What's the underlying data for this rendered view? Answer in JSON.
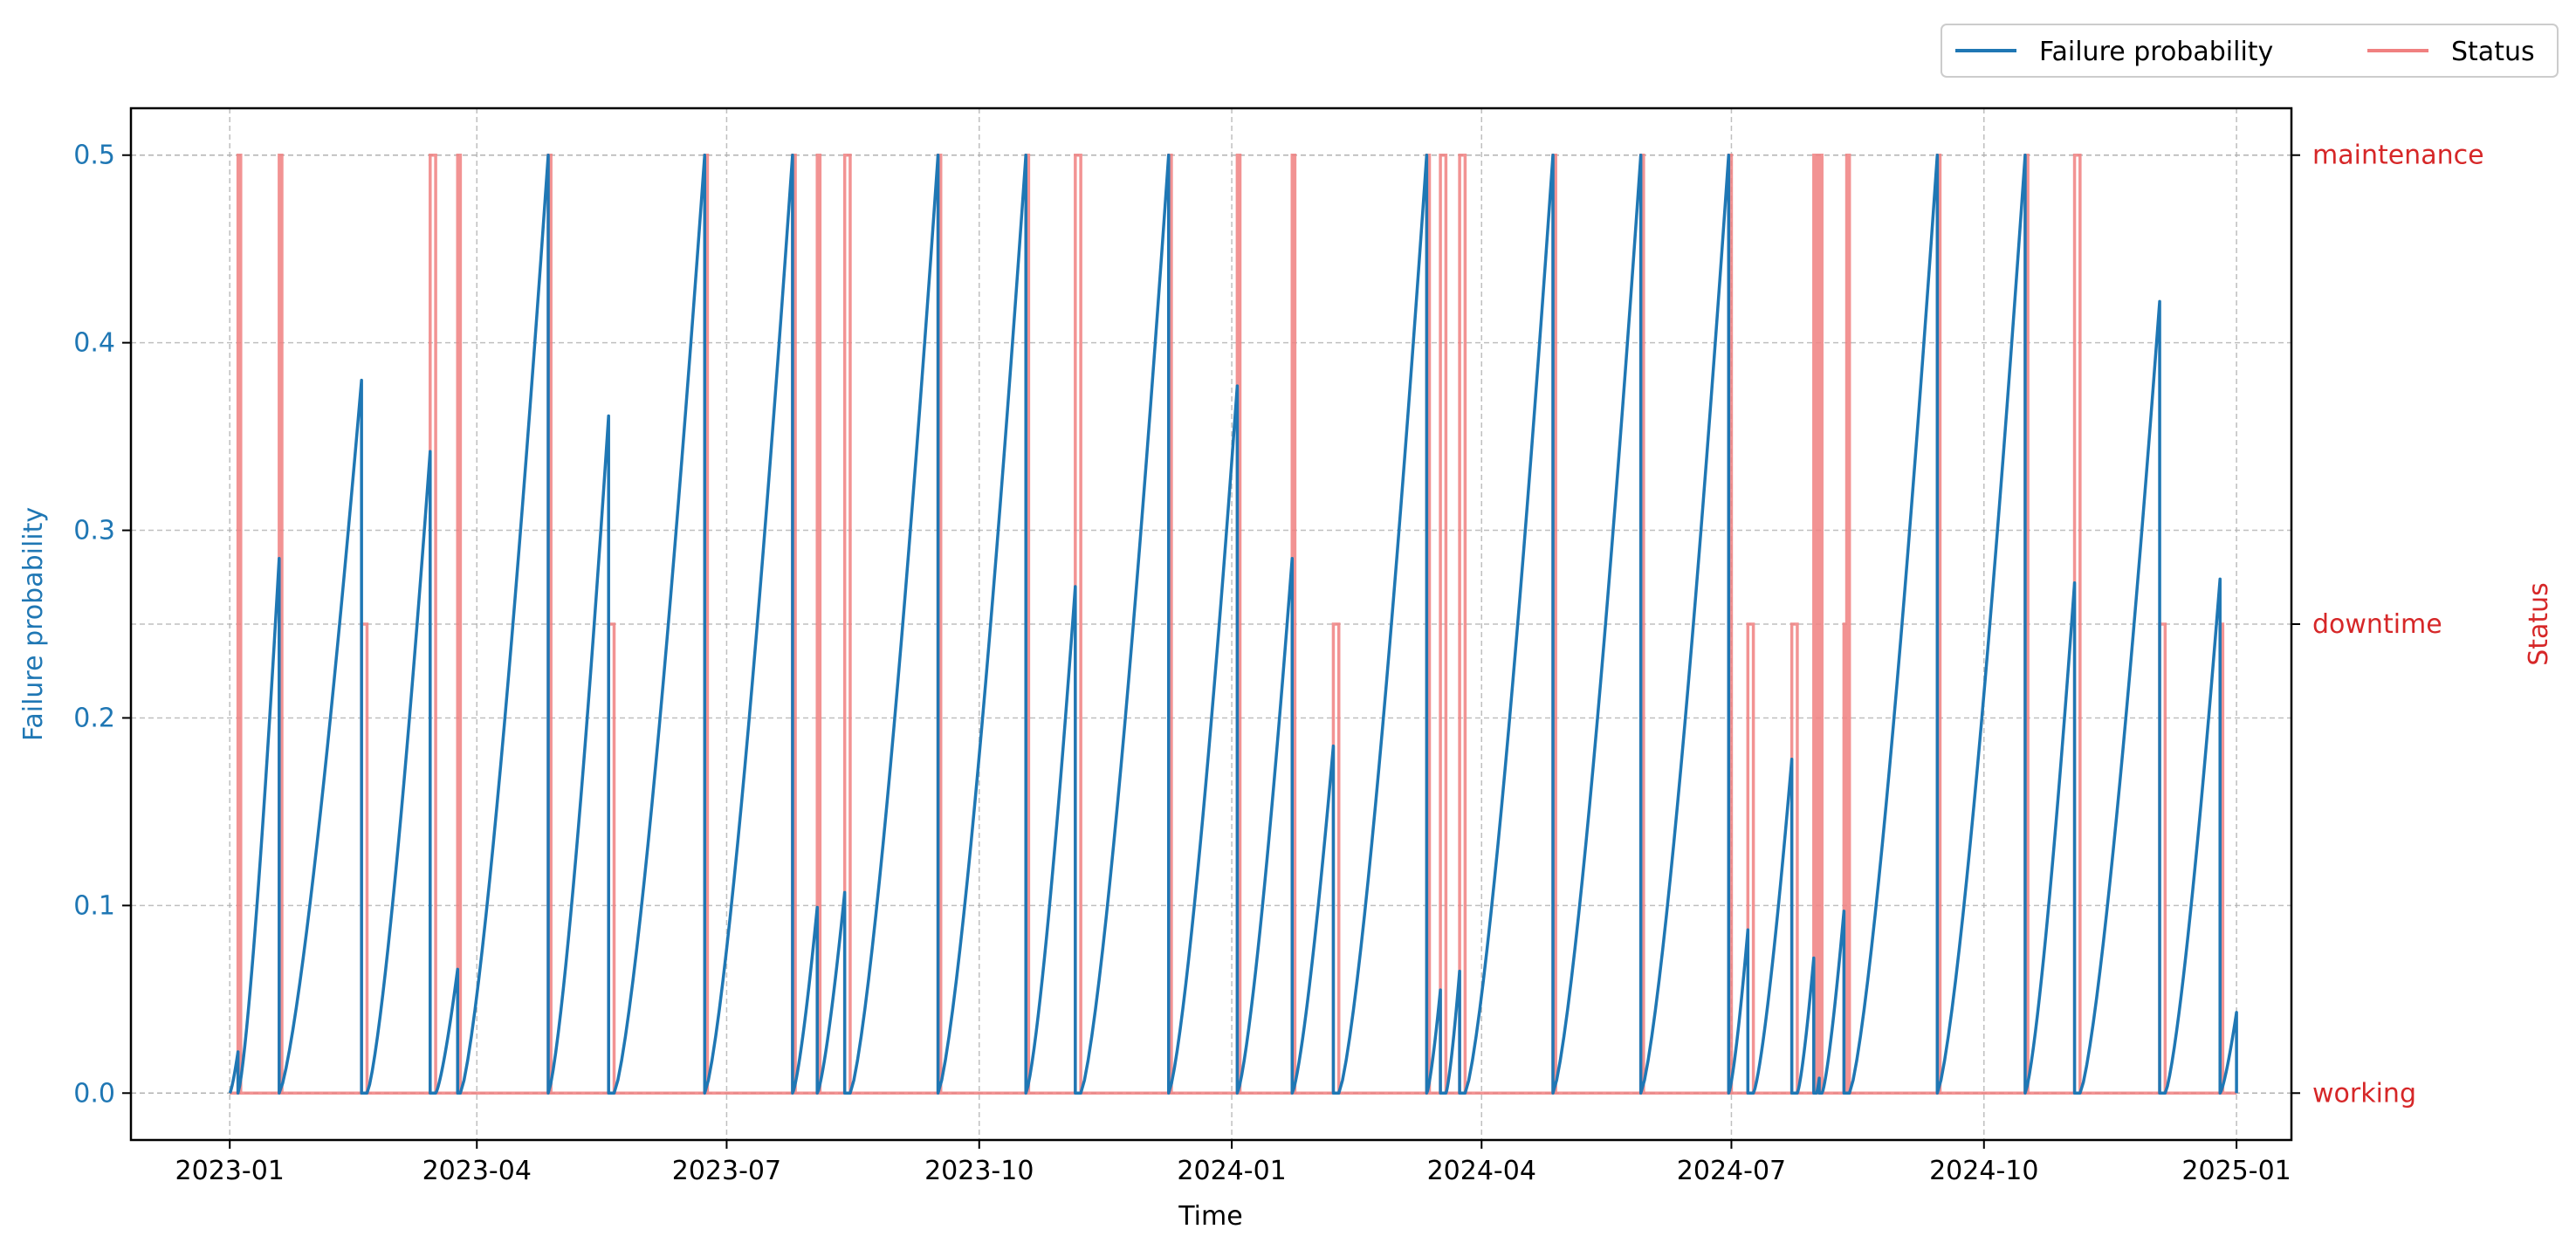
{
  "chart_data": {
    "type": "line",
    "xlabel": "Time",
    "ylabel_left": "Failure probability",
    "ylabel_right": "Status",
    "x_range": [
      "2022-11-26",
      "2025-01-21"
    ],
    "y_left_range": [
      -0.025,
      0.525
    ],
    "y_left_ticks": [
      0.0,
      0.1,
      0.2,
      0.3,
      0.4,
      0.5
    ],
    "y_left_tick_labels": [
      "0.0",
      "0.1",
      "0.2",
      "0.3",
      "0.4",
      "0.5"
    ],
    "y_right_range": [
      -0.1,
      2.1
    ],
    "y_right_ticks": [
      0,
      1,
      2
    ],
    "y_right_tick_labels": [
      "working",
      "downtime",
      "maintenance"
    ],
    "x_ticks": [
      "2023-01-01",
      "2023-04-01",
      "2023-07-01",
      "2023-10-01",
      "2024-01-01",
      "2024-04-01",
      "2024-07-01",
      "2024-10-01",
      "2025-01-01"
    ],
    "x_tick_labels": [
      "2023-01",
      "2023-04",
      "2023-07",
      "2023-10",
      "2024-01",
      "2024-04",
      "2024-07",
      "2024-10",
      "2025-01"
    ],
    "grid": true,
    "legend_placement": "top-right, outside plot",
    "colors": {
      "failure": "#1f77b4",
      "status": "#f08080",
      "status_axis": "#d62728",
      "failure_axis": "#1f77b4"
    },
    "series": [
      {
        "name": "Failure probability",
        "axis": "left",
        "peaks": [
          [
            "2023-01-01",
            "2023-01-04",
            0.022
          ],
          [
            "2023-01-04",
            "2023-01-19",
            0.285
          ],
          [
            "2023-01-19",
            "2023-02-18",
            0.38
          ],
          [
            "2023-02-20",
            "2023-03-15",
            0.342
          ],
          [
            "2023-03-17",
            "2023-03-25",
            0.066
          ],
          [
            "2023-03-26",
            "2023-04-27",
            0.5
          ],
          [
            "2023-04-27",
            "2023-05-19",
            0.361
          ],
          [
            "2023-05-21",
            "2023-06-23",
            0.5
          ],
          [
            "2023-06-23",
            "2023-07-25",
            0.5
          ],
          [
            "2023-07-25",
            "2023-08-03",
            0.099
          ],
          [
            "2023-08-03",
            "2023-08-13",
            0.107
          ],
          [
            "2023-08-15",
            "2023-09-16",
            0.5
          ],
          [
            "2023-09-16",
            "2023-10-18",
            0.5
          ],
          [
            "2023-10-18",
            "2023-11-05",
            0.27
          ],
          [
            "2023-11-07",
            "2023-12-09",
            0.5
          ],
          [
            "2023-12-09",
            "2024-01-03",
            0.377
          ],
          [
            "2024-01-03",
            "2024-01-23",
            0.285
          ],
          [
            "2024-01-23",
            "2024-02-07",
            0.185
          ],
          [
            "2024-02-09",
            "2024-03-12",
            0.5
          ],
          [
            "2024-03-12",
            "2024-03-17",
            0.055
          ],
          [
            "2024-03-19",
            "2024-03-24",
            0.065
          ],
          [
            "2024-03-26",
            "2024-04-27",
            0.5
          ],
          [
            "2024-04-27",
            "2024-05-29",
            0.5
          ],
          [
            "2024-05-29",
            "2024-06-30",
            0.5
          ],
          [
            "2024-06-30",
            "2024-07-07",
            0.087
          ],
          [
            "2024-07-09",
            "2024-07-23",
            0.178
          ],
          [
            "2024-07-25",
            "2024-07-31",
            0.072
          ],
          [
            "2024-08-01",
            "2024-08-02",
            0.008
          ],
          [
            "2024-08-03",
            "2024-08-11",
            0.097
          ],
          [
            "2024-08-13",
            "2024-09-14",
            0.5
          ],
          [
            "2024-09-14",
            "2024-10-16",
            0.5
          ],
          [
            "2024-10-16",
            "2024-11-03",
            0.272
          ],
          [
            "2024-11-05",
            "2024-12-04",
            0.422
          ],
          [
            "2024-12-06",
            "2024-12-26",
            0.274
          ],
          [
            "2024-12-26",
            "2025-01-01",
            0.043
          ]
        ]
      },
      {
        "name": "Status",
        "axis": "right",
        "levels": [
          "working",
          "downtime",
          "maintenance"
        ],
        "events": [
          [
            "2023-01-04",
            "2023-01-05",
            2
          ],
          [
            "2023-01-19",
            "2023-01-20",
            2
          ],
          [
            "2023-02-18",
            "2023-02-20",
            1
          ],
          [
            "2023-03-15",
            "2023-03-17",
            2
          ],
          [
            "2023-03-25",
            "2023-03-26",
            2
          ],
          [
            "2023-04-27",
            "2023-04-28",
            2
          ],
          [
            "2023-05-19",
            "2023-05-21",
            1
          ],
          [
            "2023-06-23",
            "2023-06-24",
            2
          ],
          [
            "2023-07-25",
            "2023-07-26",
            2
          ],
          [
            "2023-08-03",
            "2023-08-04",
            2
          ],
          [
            "2023-08-13",
            "2023-08-15",
            2
          ],
          [
            "2023-09-16",
            "2023-09-17",
            2
          ],
          [
            "2023-10-18",
            "2023-10-19",
            2
          ],
          [
            "2023-11-05",
            "2023-11-07",
            2
          ],
          [
            "2023-12-09",
            "2023-12-10",
            2
          ],
          [
            "2024-01-03",
            "2024-01-04",
            2
          ],
          [
            "2024-01-23",
            "2024-01-24",
            2
          ],
          [
            "2024-02-07",
            "2024-02-09",
            1
          ],
          [
            "2024-03-12",
            "2024-03-13",
            2
          ],
          [
            "2024-03-17",
            "2024-03-19",
            2
          ],
          [
            "2024-03-24",
            "2024-03-26",
            2
          ],
          [
            "2024-04-27",
            "2024-04-28",
            2
          ],
          [
            "2024-05-29",
            "2024-05-30",
            2
          ],
          [
            "2024-06-30",
            "2024-07-01",
            2
          ],
          [
            "2024-07-07",
            "2024-07-09",
            1
          ],
          [
            "2024-07-23",
            "2024-07-25",
            1
          ],
          [
            "2024-07-31",
            "2024-08-01",
            2
          ],
          [
            "2024-08-02",
            "2024-08-03",
            2
          ],
          [
            "2024-08-11",
            "2024-08-13",
            1
          ],
          [
            "2024-08-12",
            "2024-08-13",
            2
          ],
          [
            "2024-09-14",
            "2024-09-15",
            2
          ],
          [
            "2024-10-16",
            "2024-10-17",
            2
          ],
          [
            "2024-11-03",
            "2024-11-05",
            2
          ],
          [
            "2024-12-04",
            "2024-12-06",
            1
          ],
          [
            "2024-12-26",
            "2024-12-27",
            1
          ]
        ]
      }
    ]
  }
}
